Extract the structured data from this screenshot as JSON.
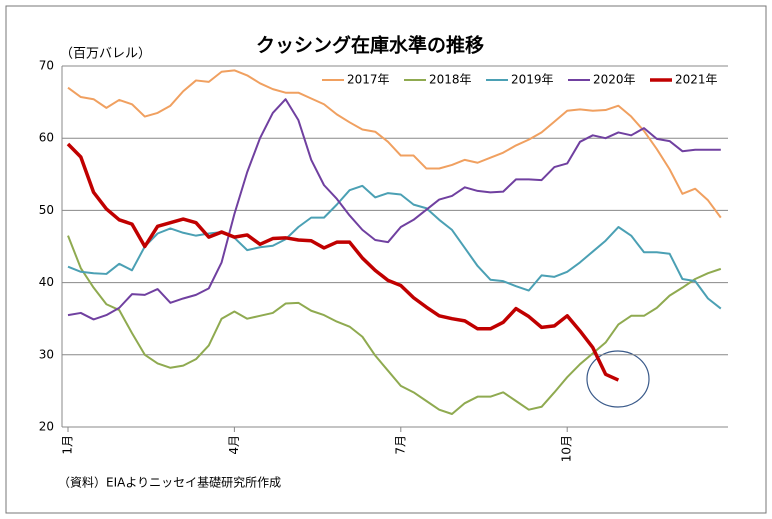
{
  "chart_data": {
    "type": "line",
    "title": "クッシング在庫水準の推移",
    "y_label": "（百万バレル）",
    "source": "（資料）EIAよりニッセイ基礎研究所作成",
    "categories": [
      "1月",
      null,
      null,
      null,
      null,
      null,
      null,
      null,
      null,
      null,
      null,
      null,
      null,
      "4月",
      null,
      null,
      null,
      null,
      null,
      null,
      null,
      null,
      null,
      null,
      null,
      null,
      "7月",
      null,
      null,
      null,
      null,
      null,
      null,
      null,
      null,
      null,
      null,
      null,
      null,
      "10月",
      null,
      null,
      null,
      null,
      null,
      null,
      null,
      null,
      null,
      null,
      null,
      null
    ],
    "series": [
      {
        "name": "2017年",
        "color": "#f0a060",
        "values": [
          67,
          65.7,
          65.4,
          64.2,
          65.3,
          64.7,
          63,
          63.5,
          64.5,
          66.5,
          68,
          67.8,
          69.2,
          69.4,
          68.7,
          67.6,
          66.8,
          66.3,
          66.3,
          65.5,
          64.7,
          63.3,
          62.2,
          61.2,
          60.9,
          59.5,
          57.6,
          57.6,
          55.8,
          55.8,
          56.3,
          57,
          56.6,
          57.3,
          58,
          59,
          59.8,
          60.8,
          62.3,
          63.8,
          64,
          63.8,
          63.9,
          64.5,
          63,
          61,
          58.5,
          55.7,
          52.3,
          53,
          51.4,
          49
        ]
      },
      {
        "name": "2018年",
        "color": "#8faa50",
        "values": [
          46.5,
          42,
          39.3,
          37,
          36.2,
          33,
          30,
          28.8,
          28.2,
          28.5,
          29.4,
          31.3,
          35,
          36,
          35,
          35.4,
          35.8,
          37.1,
          37.2,
          36.1,
          35.5,
          34.6,
          33.9,
          32.5,
          29.9,
          27.8,
          25.7,
          24.8,
          23.6,
          22.4,
          21.8,
          23.3,
          24.2,
          24.2,
          24.8,
          23.6,
          22.4,
          22.8,
          24.8,
          26.9,
          28.7,
          30.2,
          31.7,
          34.2,
          35.4,
          35.4,
          36.5,
          38.2,
          39.3,
          40.5,
          41.3,
          41.9
        ]
      },
      {
        "name": "2019年",
        "color": "#4ba0b4",
        "values": [
          42.2,
          41.5,
          41.3,
          41.2,
          42.6,
          41.7,
          45,
          46.8,
          47.5,
          46.9,
          46.5,
          46.8,
          47,
          46.2,
          44.5,
          44.9,
          45.1,
          46,
          47.7,
          49,
          49,
          50.8,
          52.8,
          53.4,
          51.8,
          52.4,
          52.2,
          50.8,
          50.3,
          48.7,
          47.3,
          44.8,
          42.3,
          40.4,
          40.2,
          39.5,
          38.9,
          41,
          40.8,
          41.5,
          42.8,
          44.3,
          45.8,
          47.7,
          46.5,
          44.2,
          44.2,
          44,
          40.5,
          40.2,
          37.8,
          36.4
        ]
      },
      {
        "name": "2020年",
        "color": "#7040a0",
        "values": [
          35.5,
          35.8,
          34.9,
          35.5,
          36.5,
          38.4,
          38.3,
          39.1,
          37.2,
          37.8,
          38.3,
          39.2,
          42.8,
          49.5,
          55.3,
          60,
          63.5,
          65.4,
          62.5,
          57,
          53.5,
          51.6,
          49.3,
          47.3,
          45.9,
          45.6,
          47.7,
          48.7,
          50.1,
          51.5,
          52,
          53.2,
          52.7,
          52.5,
          52.6,
          54.3,
          54.3,
          54.2,
          56,
          56.5,
          59.5,
          60.4,
          60,
          60.8,
          60.4,
          61.4,
          59.9,
          59.6,
          58.2,
          58.4,
          58.4,
          58.4
        ]
      },
      {
        "name": "2021年",
        "color": "#c00000",
        "values": [
          59.2,
          57.4,
          52.5,
          50.2,
          48.7,
          48.1,
          45,
          47.8,
          48.3,
          48.8,
          48.3,
          46.3,
          47,
          46.3,
          46.6,
          45.3,
          46.1,
          46.2,
          45.9,
          45.8,
          44.8,
          45.6,
          45.6,
          43.4,
          41.7,
          40.3,
          39.6,
          37.9,
          36.6,
          35.4,
          35,
          34.7,
          33.6,
          33.6,
          34.5,
          36.4,
          35.3,
          33.8,
          34,
          35.4,
          33.3,
          31,
          27.3,
          26.5,
          null,
          null,
          null,
          null,
          null,
          null,
          null,
          null
        ]
      }
    ],
    "ylim": [
      20,
      70
    ],
    "yticks": [
      20,
      30,
      40,
      50,
      60,
      70
    ],
    "grid": true
  }
}
